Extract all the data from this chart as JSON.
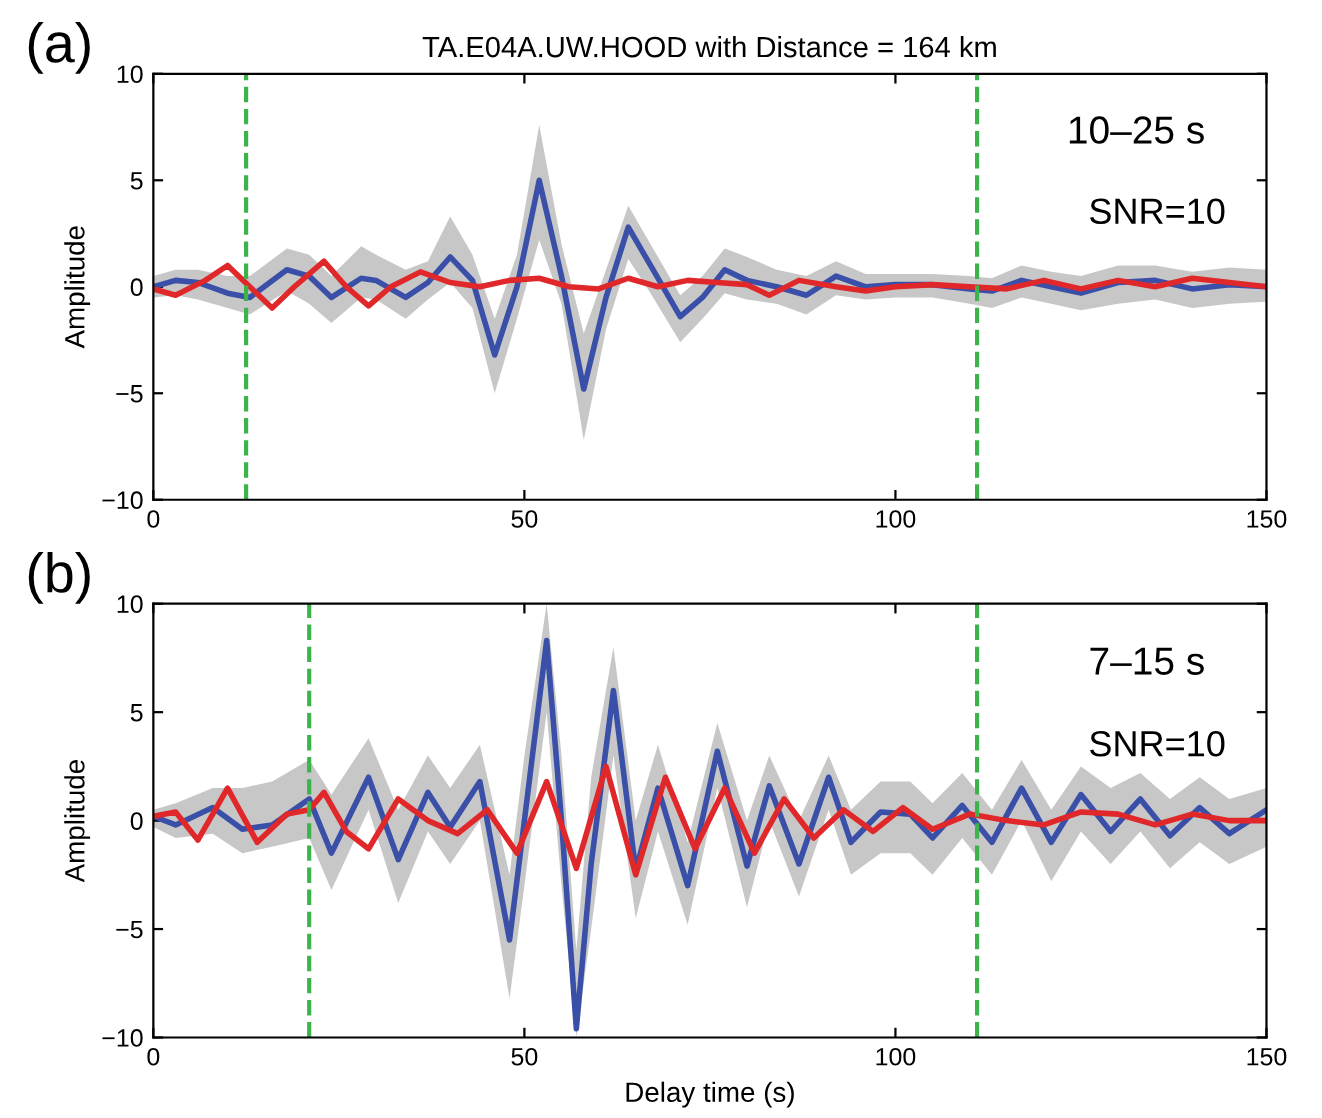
{
  "chart_data": [
    {
      "type": "line",
      "title": "TA.E04A.UW.HOOD with Distance = 164 km",
      "ylabel": "Amplitude",
      "annotations": [
        "(a)",
        "10–25 s",
        "SNR=10"
      ],
      "xlim": [
        0,
        150
      ],
      "ylim": [
        -10,
        10
      ],
      "xticks": [
        0,
        50,
        100,
        150
      ],
      "yticks": [
        -10,
        -5,
        0,
        5,
        10
      ],
      "grid": false,
      "legend": false,
      "ref_lines": [
        {
          "axis": "x",
          "value": 12.5,
          "color": "#3cb44b",
          "line_style": "dashed"
        },
        {
          "axis": "x",
          "value": 111,
          "color": "#3cb44b",
          "line_style": "dashed"
        }
      ],
      "series": [
        {
          "color": "#3a4fa8",
          "x": [
            0,
            3,
            6,
            10,
            13,
            18,
            21,
            24,
            28,
            30,
            34,
            37,
            40,
            43,
            46,
            49,
            52,
            55,
            58,
            61,
            64,
            67,
            71,
            74,
            77,
            80,
            84,
            88,
            92,
            96,
            100,
            105,
            110,
            113,
            117,
            121,
            125,
            130,
            135,
            140,
            145,
            150
          ],
          "values": [
            0,
            0.3,
            0.2,
            -0.3,
            -0.5,
            0.8,
            0.5,
            -0.5,
            0.4,
            0.3,
            -0.5,
            0.2,
            1.4,
            0.3,
            -3.2,
            0,
            5.0,
            0.5,
            -4.8,
            -0.5,
            2.8,
            1,
            -1.4,
            -0.5,
            0.8,
            0.3,
            0,
            -0.4,
            0.5,
            0,
            0.1,
            0.1,
            -0.1,
            -0.2,
            0.3,
            0,
            -0.3,
            0.2,
            0.3,
            -0.1,
            0.1,
            0
          ],
          "upper": [
            0.5,
            0.8,
            0.8,
            0.5,
            0.5,
            1.8,
            1.5,
            0.5,
            1.9,
            1.5,
            0.8,
            1.2,
            3.3,
            1.5,
            -1.5,
            1.5,
            7.6,
            2,
            -2.2,
            0.8,
            3.8,
            2,
            -0.4,
            0.5,
            1.8,
            1.4,
            0.8,
            0.5,
            1.2,
            0.6,
            0.6,
            0.6,
            0.5,
            0.4,
            1,
            0.7,
            0.5,
            1,
            1,
            0.7,
            0.9,
            0.8
          ],
          "lower": [
            -0.5,
            -0.4,
            -0.6,
            -1.0,
            -1.3,
            -0.2,
            -0.8,
            -1.7,
            -0.5,
            -0.6,
            -1.5,
            -0.6,
            0.2,
            -1,
            -5,
            -1.5,
            2.2,
            -0.8,
            -7.2,
            -2,
            1.3,
            -0.3,
            -2.6,
            -1.5,
            -0.3,
            -0.6,
            -0.8,
            -1.3,
            -0.4,
            -0.6,
            -0.5,
            -0.5,
            -0.8,
            -1,
            -0.5,
            -0.8,
            -1.1,
            -0.8,
            -0.6,
            -1.0,
            -0.8,
            -0.7
          ]
        },
        {
          "color": "#e0282b",
          "x": [
            0,
            3,
            7,
            10,
            13,
            16,
            19,
            23,
            26,
            29,
            32,
            36,
            40,
            44,
            48,
            52,
            56,
            60,
            64,
            68,
            72,
            76,
            80,
            83,
            87,
            92,
            96,
            100,
            105,
            110,
            115,
            120,
            125,
            130,
            135,
            140,
            145,
            150
          ],
          "values": [
            -0.1,
            -0.4,
            0.3,
            1.0,
            0,
            -1.0,
            0,
            1.2,
            0,
            -0.9,
            0,
            0.7,
            0.2,
            0,
            0.3,
            0.4,
            0,
            -0.1,
            0.4,
            0,
            0.3,
            0.2,
            0.1,
            -0.4,
            0.3,
            0,
            -0.2,
            0,
            0.1,
            0,
            -0.1,
            0.3,
            -0.1,
            0.3,
            0,
            0.4,
            0.2,
            0
          ]
        }
      ]
    },
    {
      "type": "line",
      "xlabel": "Delay time (s)",
      "ylabel": "Amplitude",
      "annotations": [
        "(b)",
        "7–15 s",
        "SNR=10"
      ],
      "xlim": [
        0,
        150
      ],
      "ylim": [
        -10,
        10
      ],
      "xticks": [
        0,
        50,
        100,
        150
      ],
      "yticks": [
        -10,
        -5,
        0,
        5,
        10
      ],
      "grid": false,
      "legend": false,
      "ref_lines": [
        {
          "axis": "x",
          "value": 21,
          "color": "#3cb44b",
          "line_style": "dashed"
        },
        {
          "axis": "x",
          "value": 111,
          "color": "#3cb44b",
          "line_style": "dashed"
        }
      ],
      "series": [
        {
          "color": "#3a4fa8",
          "x": [
            0,
            3,
            8,
            12,
            16,
            21,
            24,
            29,
            33,
            37,
            40,
            44,
            48,
            50,
            53,
            55,
            57,
            59,
            62,
            65,
            68,
            72,
            76,
            80,
            83,
            87,
            91,
            94,
            98,
            102,
            105,
            109,
            113,
            117,
            121,
            125,
            129,
            133,
            137,
            141,
            145,
            150
          ],
          "values": [
            0.2,
            -0.2,
            0.6,
            -0.4,
            -0.2,
            1.0,
            -1.5,
            2.0,
            -1.8,
            1.3,
            -0.3,
            1.8,
            -5.5,
            0,
            8.3,
            0,
            -9.6,
            -2,
            6.0,
            -2.3,
            1.5,
            -3.0,
            3.2,
            -2.1,
            1.6,
            -2.0,
            2.0,
            -1.0,
            0.4,
            0.3,
            -0.8,
            0.7,
            -1.0,
            1.5,
            -1.0,
            1.2,
            -0.5,
            1.0,
            -0.7,
            0.6,
            -0.6,
            0.5
          ],
          "upper": [
            0.5,
            0.8,
            1.5,
            1.5,
            1.8,
            2.8,
            1.2,
            3.8,
            0.5,
            3,
            1.5,
            3.5,
            -2.5,
            3,
            10,
            3,
            -6,
            2,
            8,
            0,
            3.5,
            -1,
            4.5,
            0,
            3,
            0,
            3,
            0.5,
            1.8,
            1.8,
            0.8,
            2.2,
            0.5,
            2.8,
            0.5,
            2.5,
            1.5,
            2.2,
            1,
            2,
            1,
            1.5
          ],
          "lower": [
            -0.3,
            -0.8,
            -0.6,
            -1.5,
            -1.2,
            -0.8,
            -3.2,
            0.5,
            -3.8,
            -0.5,
            -2,
            0,
            -8.2,
            -3,
            5,
            -3,
            -10,
            -5,
            3,
            -4.5,
            -0.5,
            -4.8,
            1.5,
            -4,
            0,
            -3.5,
            0.5,
            -2.5,
            -1.5,
            -1.5,
            -2.5,
            -0.8,
            -2.5,
            0,
            -2.8,
            -0.5,
            -2,
            -0.5,
            -2.2,
            -1,
            -2,
            -1.2
          ]
        },
        {
          "color": "#e0282b",
          "x": [
            0,
            3,
            6,
            10,
            14,
            18,
            21,
            23,
            26,
            29,
            33,
            37,
            41,
            45,
            49,
            53,
            57,
            61,
            65,
            69,
            73,
            77,
            81,
            85,
            89,
            93,
            97,
            101,
            105,
            110,
            115,
            120,
            125,
            130,
            135,
            140,
            145,
            150
          ],
          "values": [
            0.2,
            0.4,
            -0.9,
            1.5,
            -1.0,
            0.3,
            0.5,
            1.3,
            -0.5,
            -1.3,
            1.0,
            0,
            -0.6,
            0.5,
            -1.5,
            1.8,
            -2.2,
            2.5,
            -2.5,
            2.0,
            -1.3,
            1.5,
            -1.5,
            1.0,
            -0.8,
            0.5,
            -0.5,
            0.6,
            -0.4,
            0.3,
            0,
            -0.2,
            0.4,
            0.3,
            -0.2,
            0.3,
            0,
            0
          ]
        }
      ]
    }
  ]
}
